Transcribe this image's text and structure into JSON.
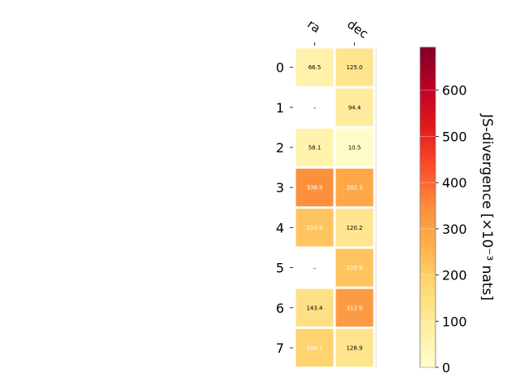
{
  "chart_data": {
    "type": "heatmap",
    "columns": [
      "ra",
      "dec"
    ],
    "rows": [
      "0",
      "1",
      "2",
      "3",
      "4",
      "5",
      "6",
      "7"
    ],
    "values": [
      [
        66.5,
        125.0
      ],
      [
        null,
        94.4
      ],
      [
        58.1,
        10.5
      ],
      [
        338.9,
        282.3
      ],
      [
        220.6,
        120.2
      ],
      [
        null,
        220.9
      ],
      [
        143.4,
        312.9
      ],
      [
        186.1,
        126.9
      ]
    ],
    "cell_labels": [
      [
        "66.5",
        "125.0"
      ],
      [
        "–",
        "94.4"
      ],
      [
        "58.1",
        "10.5"
      ],
      [
        "338.9",
        "282.3"
      ],
      [
        "220.6",
        "120.2"
      ],
      [
        "–",
        "220.9"
      ],
      [
        "143.4",
        "312.9"
      ],
      [
        "186.1",
        "126.9"
      ]
    ],
    "colorbar": {
      "label": "JS-divergence [×10⁻³ nats]",
      "min": 0,
      "max": 693,
      "ticks": [
        "0",
        "100",
        "200",
        "300",
        "400",
        "500",
        "600"
      ],
      "tick_values": [
        0,
        100,
        200,
        300,
        400,
        500,
        600
      ],
      "colormap": "YlOrRd"
    },
    "grid": false
  }
}
